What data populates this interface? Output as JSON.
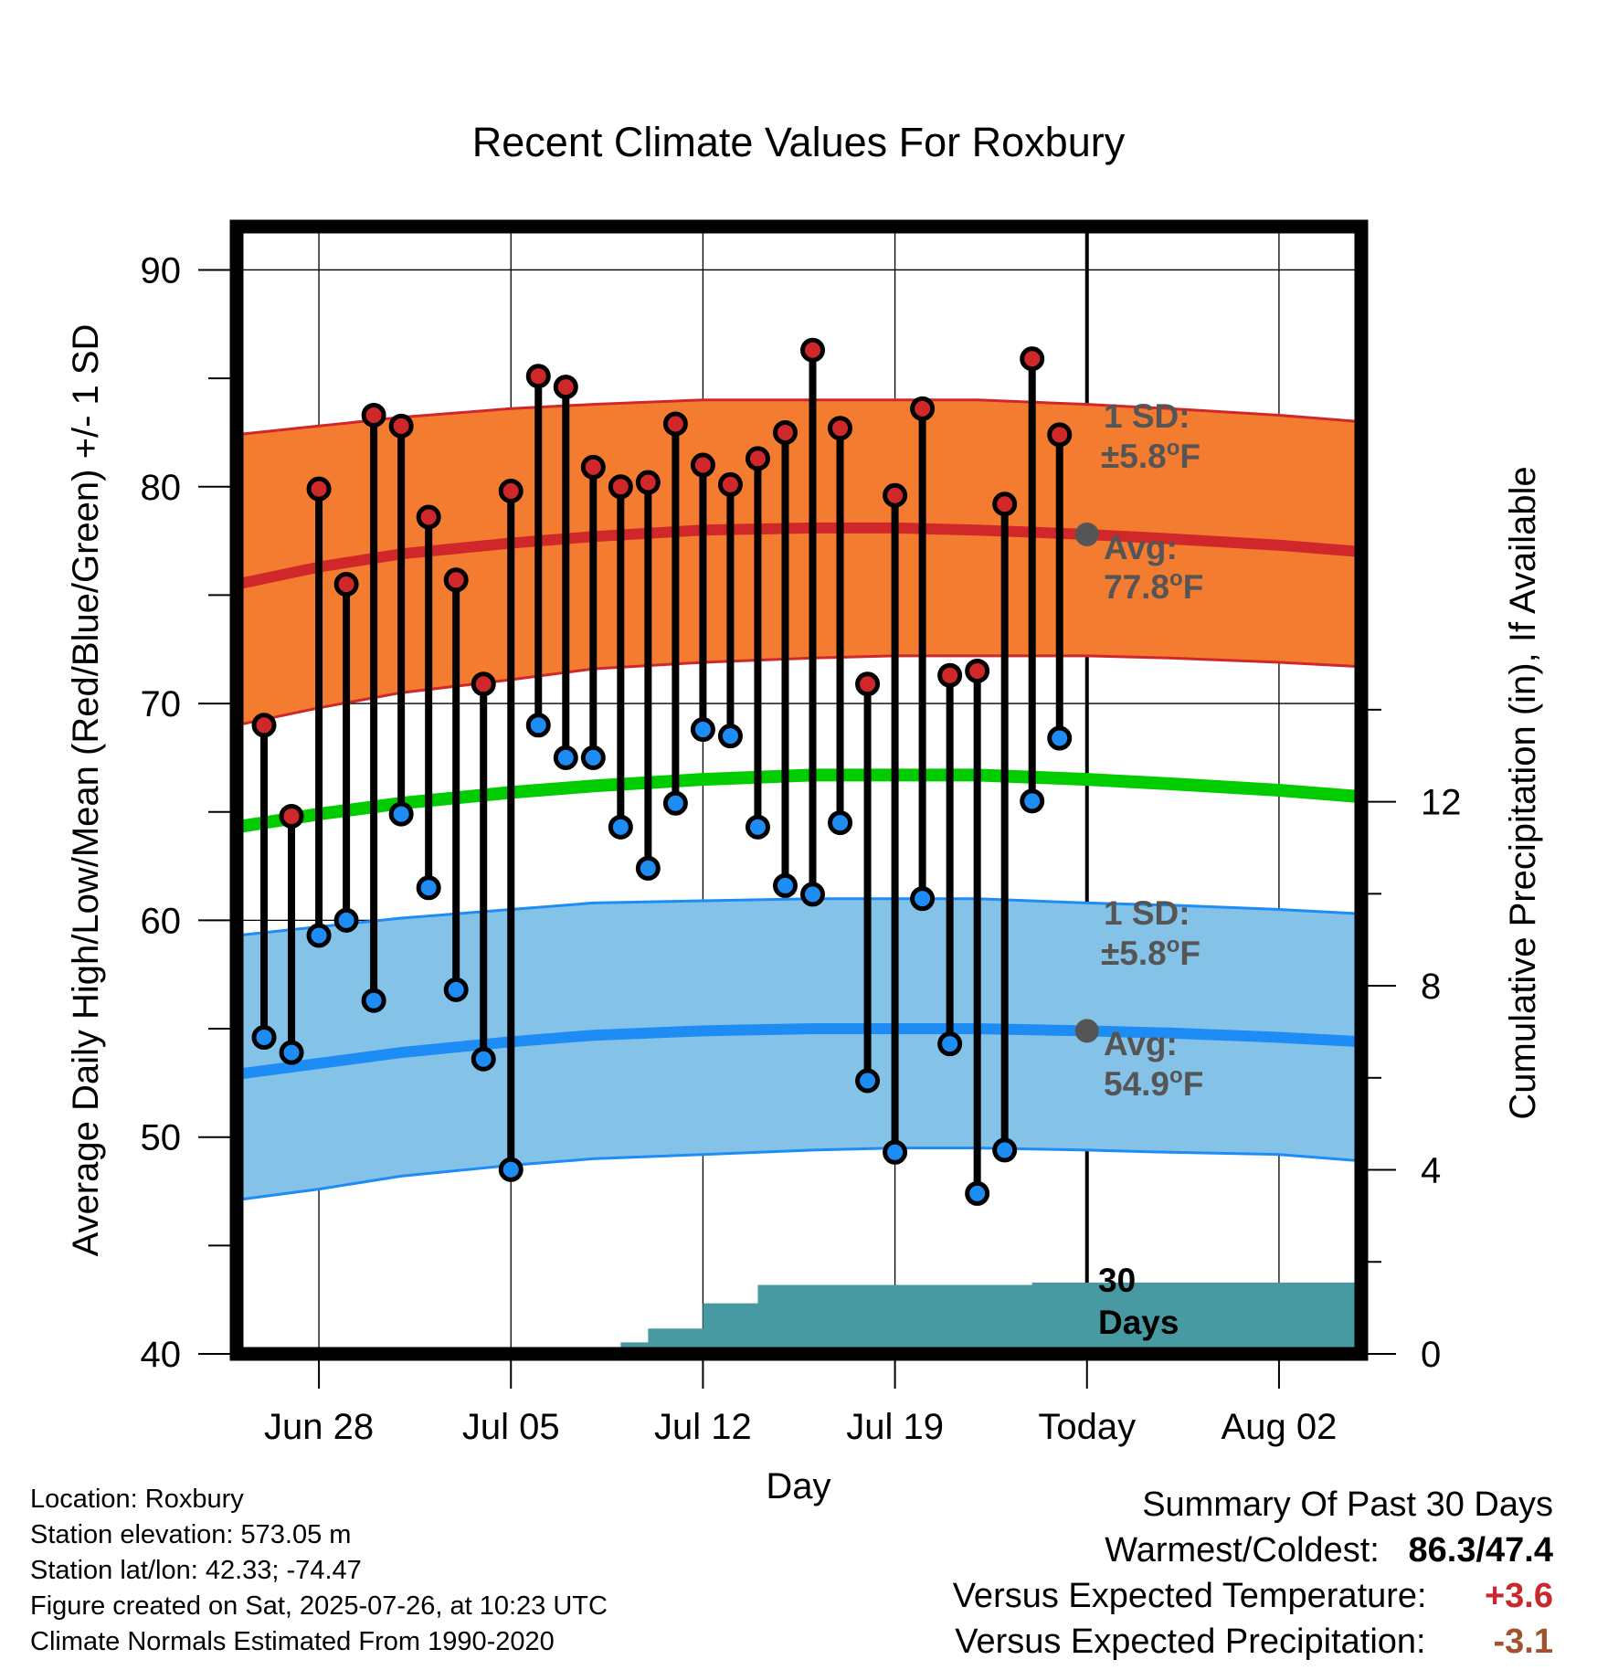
{
  "title": "Recent Climate Values For Roxbury",
  "colors": {
    "high_band": "#f47c31",
    "high_band_edge": "#d0282a",
    "high_avg": "#d0282a",
    "low_band": "#85c2e8",
    "low_band_edge": "#1e8cf5",
    "low_avg": "#1e8cf5",
    "mean": "#00cc00",
    "precip": "#479aa1",
    "high_dot": "#d0282a",
    "low_dot": "#1e8cf5",
    "annotation": "#555555"
  },
  "chart_data": {
    "type": "line",
    "xlabel": "Day",
    "ylabel_left": "Average Daily High/Low/Mean (Red/Blue/Green) +/- 1 SD",
    "ylabel_right": "Cumulative Precipitation (in), If Available",
    "x_range": [
      "2025-06-25",
      "2025-08-05"
    ],
    "ylim_left": [
      40,
      92
    ],
    "yticks_left": [
      40,
      50,
      60,
      70,
      80,
      90
    ],
    "ylim_right": [
      0,
      24.5
    ],
    "yticks_right": [
      0,
      4,
      8,
      12
    ],
    "xticks": [
      {
        "date": "2025-06-28",
        "label": "Jun 28"
      },
      {
        "date": "2025-07-05",
        "label": "Jul 05"
      },
      {
        "date": "2025-07-12",
        "label": "Jul 12"
      },
      {
        "date": "2025-07-19",
        "label": "Jul 19"
      },
      {
        "date": "2025-07-26",
        "label": "Today"
      },
      {
        "date": "2025-08-02",
        "label": "Aug 02"
      }
    ],
    "today": "2025-07-26",
    "grid": true,
    "normals": {
      "dates": [
        "2025-06-25",
        "2025-06-28",
        "2025-07-01",
        "2025-07-05",
        "2025-07-08",
        "2025-07-12",
        "2025-07-16",
        "2025-07-19",
        "2025-07-22",
        "2025-07-26",
        "2025-07-29",
        "2025-08-02",
        "2025-08-05"
      ],
      "high_avg": [
        75.5,
        76.3,
        76.9,
        77.4,
        77.7,
        78.0,
        78.1,
        78.1,
        78.0,
        77.8,
        77.6,
        77.3,
        77.0
      ],
      "high_plus_sd": [
        82.4,
        82.8,
        83.2,
        83.6,
        83.8,
        84.0,
        84.0,
        84.0,
        84.0,
        83.8,
        83.6,
        83.3,
        83.0
      ],
      "high_minus_sd": [
        69.0,
        69.8,
        70.5,
        71.1,
        71.6,
        71.9,
        72.1,
        72.2,
        72.2,
        72.2,
        72.1,
        71.9,
        71.7
      ],
      "mean_avg": [
        64.3,
        64.9,
        65.4,
        65.9,
        66.2,
        66.5,
        66.7,
        66.7,
        66.7,
        66.5,
        66.3,
        66.0,
        65.7
      ],
      "low_avg": [
        52.9,
        53.4,
        53.9,
        54.4,
        54.7,
        54.9,
        55.0,
        55.0,
        55.0,
        54.9,
        54.8,
        54.6,
        54.4
      ],
      "low_plus_sd": [
        59.3,
        59.7,
        60.1,
        60.5,
        60.8,
        60.9,
        61.0,
        61.0,
        61.0,
        60.8,
        60.7,
        60.5,
        60.3
      ],
      "low_minus_sd": [
        47.1,
        47.6,
        48.2,
        48.7,
        49.0,
        49.2,
        49.4,
        49.5,
        49.5,
        49.4,
        49.3,
        49.2,
        48.9
      ]
    },
    "series": [
      {
        "name": "High",
        "dates": [
          "2025-06-26",
          "2025-06-27",
          "2025-06-28",
          "2025-06-29",
          "2025-06-30",
          "2025-07-01",
          "2025-07-02",
          "2025-07-03",
          "2025-07-04",
          "2025-07-05",
          "2025-07-06",
          "2025-07-07",
          "2025-07-08",
          "2025-07-09",
          "2025-07-10",
          "2025-07-11",
          "2025-07-12",
          "2025-07-13",
          "2025-07-14",
          "2025-07-15",
          "2025-07-16",
          "2025-07-17",
          "2025-07-18",
          "2025-07-19",
          "2025-07-20",
          "2025-07-21",
          "2025-07-22",
          "2025-07-23",
          "2025-07-24",
          "2025-07-25"
        ],
        "values": [
          69.0,
          64.8,
          79.9,
          75.5,
          83.3,
          82.8,
          78.6,
          75.7,
          70.9,
          79.8,
          85.1,
          84.6,
          80.9,
          80.0,
          80.2,
          82.9,
          81.0,
          80.1,
          81.3,
          82.5,
          86.3,
          82.7,
          70.9,
          79.6,
          83.6,
          71.3,
          71.5,
          79.2,
          85.9,
          82.4
        ]
      },
      {
        "name": "Low",
        "dates": [
          "2025-06-26",
          "2025-06-27",
          "2025-06-28",
          "2025-06-29",
          "2025-06-30",
          "2025-07-01",
          "2025-07-02",
          "2025-07-03",
          "2025-07-04",
          "2025-07-05",
          "2025-07-06",
          "2025-07-07",
          "2025-07-08",
          "2025-07-09",
          "2025-07-10",
          "2025-07-11",
          "2025-07-12",
          "2025-07-13",
          "2025-07-14",
          "2025-07-15",
          "2025-07-16",
          "2025-07-17",
          "2025-07-18",
          "2025-07-19",
          "2025-07-20",
          "2025-07-21",
          "2025-07-22",
          "2025-07-23",
          "2025-07-24",
          "2025-07-25"
        ],
        "values": [
          54.6,
          53.9,
          59.3,
          60.0,
          56.3,
          64.9,
          61.5,
          56.8,
          53.6,
          48.5,
          69.0,
          67.5,
          67.5,
          64.3,
          62.4,
          65.4,
          68.8,
          68.5,
          64.3,
          61.6,
          61.2,
          64.5,
          52.6,
          49.3,
          61.0,
          54.3,
          47.4,
          49.4,
          65.5,
          68.4
        ]
      }
    ],
    "precipitation": {
      "dates": [
        "2025-06-25",
        "2025-07-03",
        "2025-07-08",
        "2025-07-09",
        "2025-07-10",
        "2025-07-11",
        "2025-07-12",
        "2025-07-13",
        "2025-07-14",
        "2025-07-23",
        "2025-07-24",
        "2025-08-05"
      ],
      "values": [
        0.0,
        0.05,
        0.05,
        0.25,
        0.55,
        0.55,
        1.1,
        1.1,
        1.5,
        1.5,
        1.55,
        1.55
      ]
    },
    "annotations": {
      "high_sd_label": "1 SD:",
      "high_sd_value": "±5.8",
      "high_avg_label": "Avg:",
      "high_avg_value": "77.8",
      "low_sd_label": "1 SD:",
      "low_sd_value": "±5.8",
      "low_avg_label": "Avg:",
      "low_avg_value": "54.9",
      "degree_unit": "F",
      "days_line1": "30",
      "days_line2": "Days"
    }
  },
  "metadata": {
    "location": "Location: Roxbury",
    "elevation": "Station elevation: 573.05 m",
    "latlon": "Station lat/lon: 42.33; -74.47",
    "created": "Figure created on Sat, 2025-07-26, at 10:23 UTC",
    "normals": "Climate Normals Estimated From 1990-2020"
  },
  "summary": {
    "title": "Summary Of Past 30 Days",
    "warm_cold_label": "Warmest/Coldest:",
    "warm_cold_value": "86.3/47.4",
    "temp_label": "Versus Expected Temperature:",
    "temp_value": "+3.6",
    "precip_label": "Versus Expected Precipitation:",
    "precip_value": "-3.1"
  }
}
